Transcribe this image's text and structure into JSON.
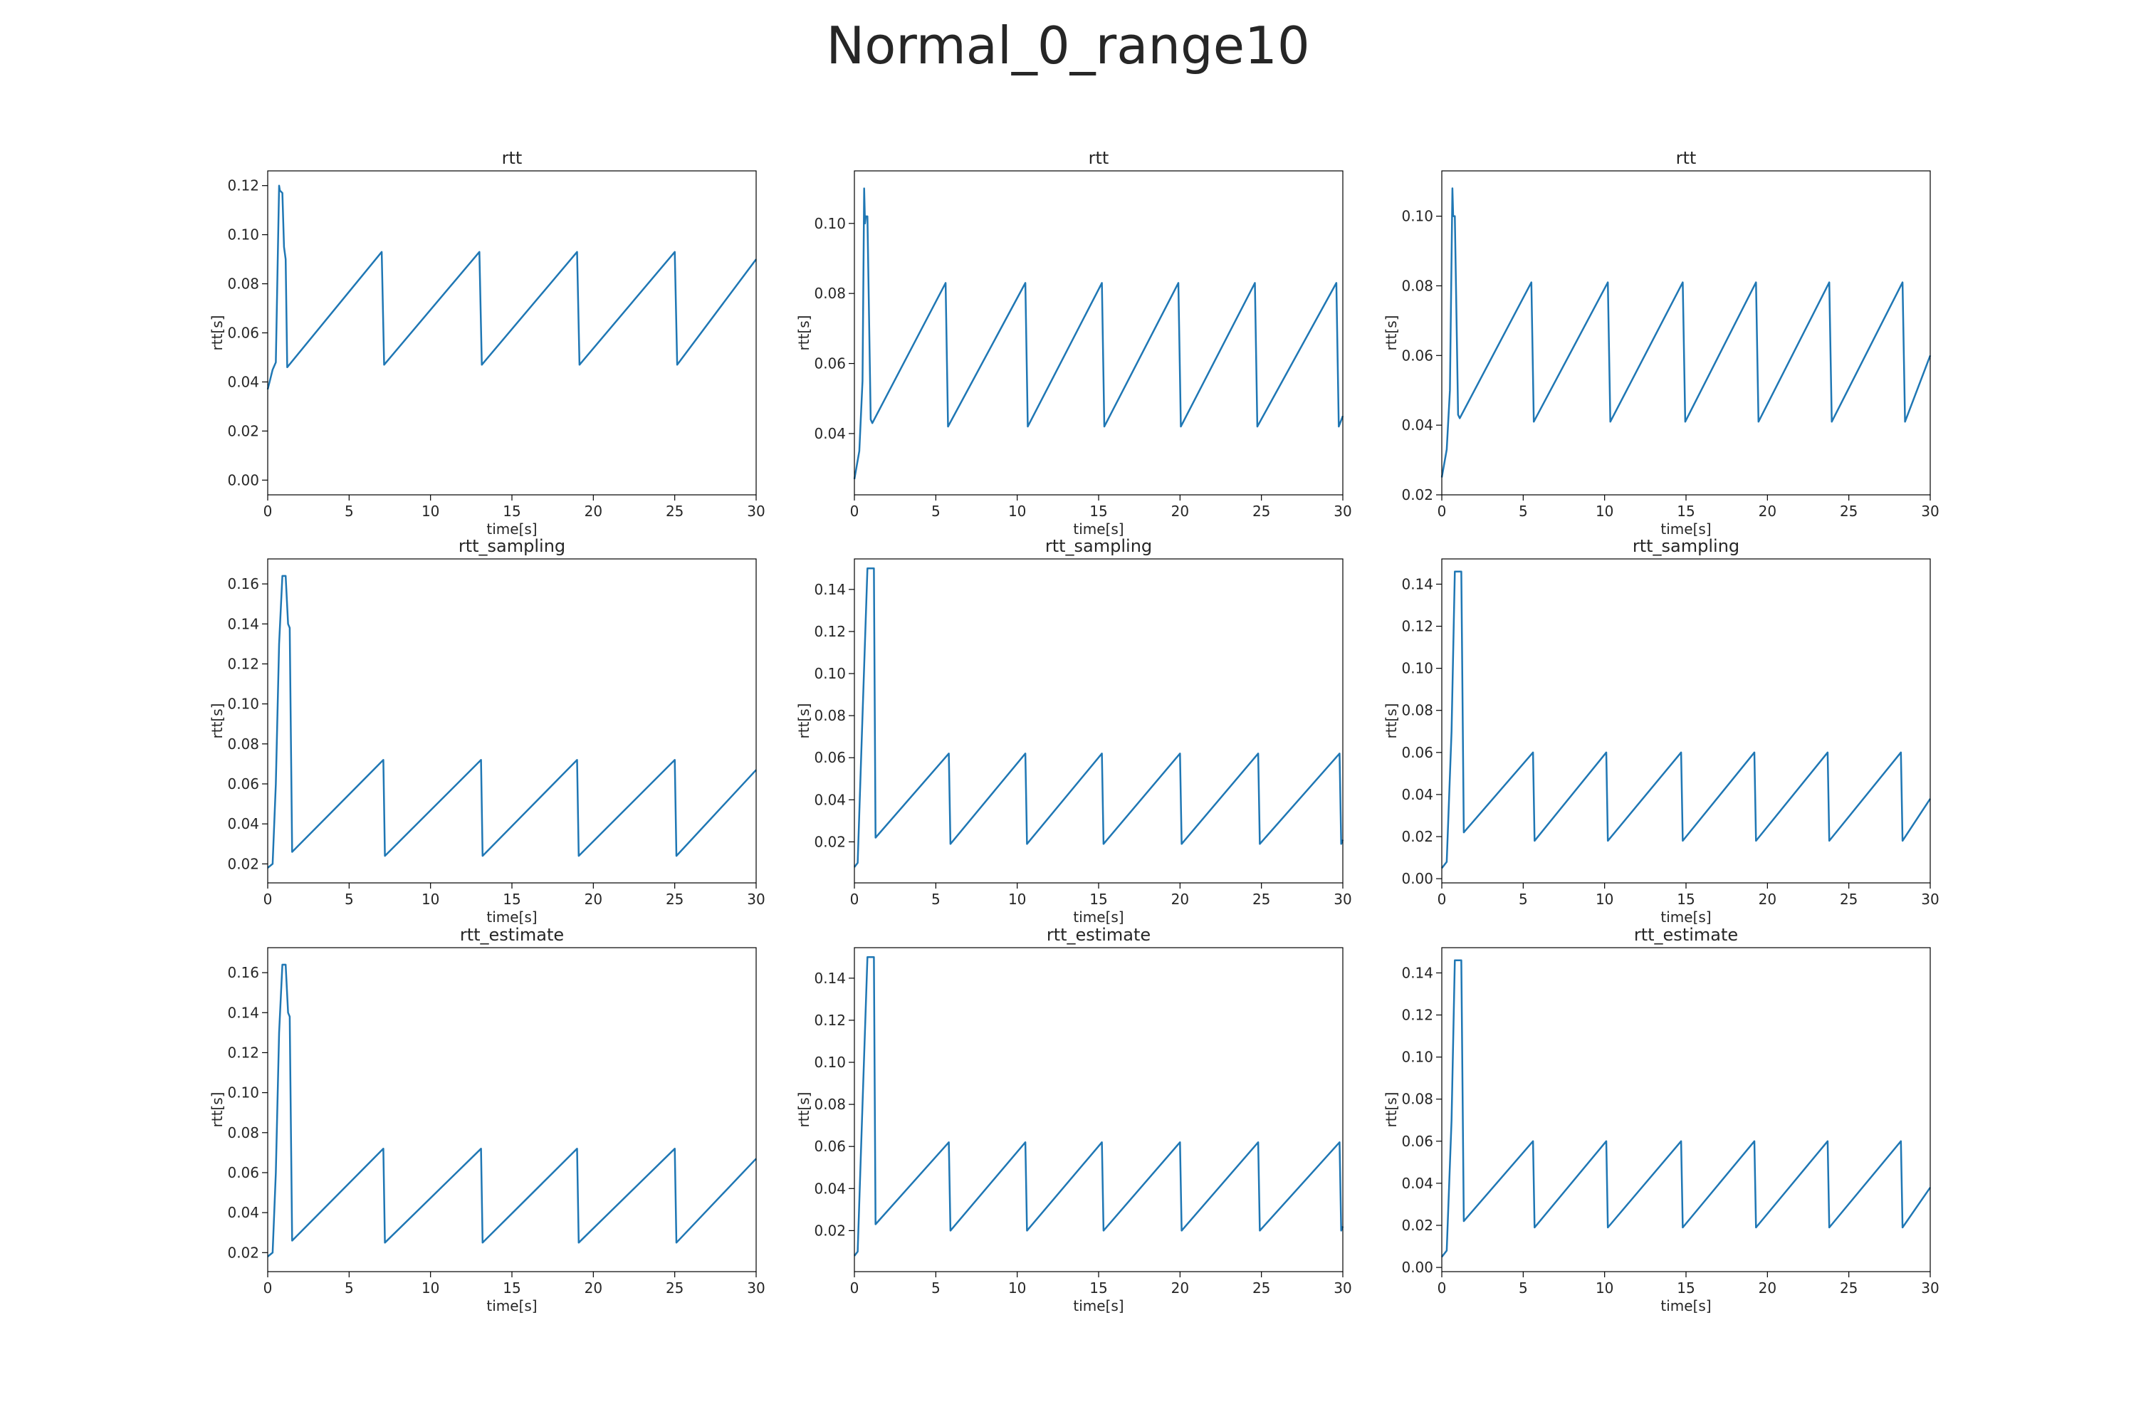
{
  "title": "Normal_0_range10",
  "line_color": "#1f77b4",
  "chart_data": [
    {
      "type": "line",
      "title": "rtt",
      "xlabel": "time[s]",
      "ylabel": "rtt[s]",
      "xlim": [
        0,
        30
      ],
      "ylim": [
        -0.006,
        0.126
      ],
      "xticks": [
        0,
        5,
        10,
        15,
        20,
        25,
        30
      ],
      "yticks": [
        0.0,
        0.02,
        0.04,
        0.06,
        0.08,
        0.1,
        0.12
      ],
      "yticklabels": [
        "0.00",
        "0.02",
        "0.04",
        "0.06",
        "0.08",
        "0.10",
        "0.12"
      ],
      "x": [
        0,
        0.3,
        0.5,
        0.7,
        0.75,
        0.9,
        1.0,
        1.1,
        1.2,
        7.0,
        7.15,
        13.0,
        13.15,
        19.0,
        19.15,
        25.0,
        25.15,
        30.0
      ],
      "y": [
        0.037,
        0.045,
        0.048,
        0.12,
        0.118,
        0.117,
        0.095,
        0.09,
        0.046,
        0.093,
        0.047,
        0.093,
        0.047,
        0.093,
        0.047,
        0.093,
        0.047,
        0.09
      ],
      "grid": false
    },
    {
      "type": "line",
      "title": "rtt",
      "xlabel": "time[s]",
      "ylabel": "rtt[s]",
      "xlim": [
        0,
        30
      ],
      "ylim": [
        0.0225,
        0.115
      ],
      "xticks": [
        0,
        5,
        10,
        15,
        20,
        25,
        30
      ],
      "yticks": [
        0.04,
        0.06,
        0.08,
        0.1
      ],
      "yticklabels": [
        "0.04",
        "0.06",
        "0.08",
        "0.10"
      ],
      "x": [
        0,
        0.3,
        0.5,
        0.6,
        0.65,
        0.7,
        0.8,
        1.0,
        1.1,
        5.6,
        5.75,
        10.5,
        10.65,
        15.2,
        15.35,
        19.9,
        20.05,
        24.6,
        24.75,
        29.6,
        29.75,
        30.0
      ],
      "y": [
        0.027,
        0.035,
        0.055,
        0.11,
        0.1,
        0.102,
        0.102,
        0.044,
        0.043,
        0.083,
        0.042,
        0.083,
        0.042,
        0.083,
        0.042,
        0.083,
        0.042,
        0.083,
        0.042,
        0.083,
        0.042,
        0.045
      ],
      "grid": false
    },
    {
      "type": "line",
      "title": "rtt",
      "xlabel": "time[s]",
      "ylabel": "rtt[s]",
      "xlim": [
        0,
        30
      ],
      "ylim": [
        0.02,
        0.113
      ],
      "xticks": [
        0,
        5,
        10,
        15,
        20,
        25,
        30
      ],
      "yticks": [
        0.02,
        0.04,
        0.06,
        0.08,
        0.1
      ],
      "yticklabels": [
        "0.02",
        "0.04",
        "0.06",
        "0.08",
        "0.10"
      ],
      "x": [
        0,
        0.3,
        0.5,
        0.65,
        0.7,
        0.8,
        1.0,
        1.1,
        5.5,
        5.65,
        10.2,
        10.35,
        14.8,
        14.95,
        19.3,
        19.45,
        23.8,
        23.95,
        28.3,
        28.45,
        30.0
      ],
      "y": [
        0.025,
        0.033,
        0.05,
        0.108,
        0.1,
        0.1,
        0.043,
        0.042,
        0.081,
        0.041,
        0.081,
        0.041,
        0.081,
        0.041,
        0.081,
        0.041,
        0.081,
        0.041,
        0.081,
        0.041,
        0.06
      ],
      "grid": false
    },
    {
      "type": "line",
      "title": "rtt_sampling",
      "xlabel": "time[s]",
      "ylabel": "rtt[s]",
      "xlim": [
        0,
        30
      ],
      "ylim": [
        0.0105,
        0.1725
      ],
      "xticks": [
        0,
        5,
        10,
        15,
        20,
        25,
        30
      ],
      "yticks": [
        0.02,
        0.04,
        0.06,
        0.08,
        0.1,
        0.12,
        0.14,
        0.16
      ],
      "yticklabels": [
        "0.02",
        "0.04",
        "0.06",
        "0.08",
        "0.10",
        "0.12",
        "0.14",
        "0.16"
      ],
      "x": [
        0,
        0.3,
        0.5,
        0.7,
        0.9,
        1.1,
        1.25,
        1.35,
        1.5,
        7.1,
        7.2,
        13.1,
        13.2,
        19.0,
        19.1,
        25.0,
        25.1,
        30.0
      ],
      "y": [
        0.018,
        0.02,
        0.06,
        0.13,
        0.164,
        0.164,
        0.14,
        0.138,
        0.026,
        0.072,
        0.024,
        0.072,
        0.024,
        0.072,
        0.024,
        0.072,
        0.024,
        0.067
      ],
      "grid": false
    },
    {
      "type": "line",
      "title": "rtt_sampling",
      "xlabel": "time[s]",
      "ylabel": "rtt[s]",
      "xlim": [
        0,
        30
      ],
      "ylim": [
        0.0005,
        0.1545
      ],
      "xticks": [
        0,
        5,
        10,
        15,
        20,
        25,
        30
      ],
      "yticks": [
        0.02,
        0.04,
        0.06,
        0.08,
        0.1,
        0.12,
        0.14
      ],
      "yticklabels": [
        "0.02",
        "0.04",
        "0.06",
        "0.08",
        "0.10",
        "0.12",
        "0.14"
      ],
      "x": [
        0,
        0.2,
        0.5,
        0.8,
        1.2,
        1.3,
        5.8,
        5.9,
        10.5,
        10.6,
        15.2,
        15.3,
        20.0,
        20.1,
        24.8,
        24.9,
        29.8,
        29.9,
        30.0
      ],
      "y": [
        0.008,
        0.01,
        0.08,
        0.15,
        0.15,
        0.022,
        0.062,
        0.019,
        0.062,
        0.019,
        0.062,
        0.019,
        0.062,
        0.019,
        0.062,
        0.019,
        0.062,
        0.019,
        0.021
      ],
      "grid": false
    },
    {
      "type": "line",
      "title": "rtt_sampling",
      "xlabel": "time[s]",
      "ylabel": "rtt[s]",
      "xlim": [
        0,
        30
      ],
      "ylim": [
        -0.002,
        0.152
      ],
      "xticks": [
        0,
        5,
        10,
        15,
        20,
        25,
        30
      ],
      "yticks": [
        0.0,
        0.02,
        0.04,
        0.06,
        0.08,
        0.1,
        0.12,
        0.14
      ],
      "yticklabels": [
        "0.00",
        "0.02",
        "0.04",
        "0.06",
        "0.08",
        "0.10",
        "0.12",
        "0.14"
      ],
      "x": [
        0,
        0.3,
        0.6,
        0.8,
        1.2,
        1.35,
        5.6,
        5.7,
        10.1,
        10.2,
        14.7,
        14.8,
        19.2,
        19.3,
        23.7,
        23.8,
        28.2,
        28.3,
        30.0
      ],
      "y": [
        0.005,
        0.008,
        0.07,
        0.146,
        0.146,
        0.022,
        0.06,
        0.018,
        0.06,
        0.018,
        0.06,
        0.018,
        0.06,
        0.018,
        0.06,
        0.018,
        0.06,
        0.018,
        0.038
      ],
      "grid": false
    },
    {
      "type": "line",
      "title": "rtt_estimate",
      "xlabel": "time[s]",
      "ylabel": "rtt[s]",
      "xlim": [
        0,
        30
      ],
      "ylim": [
        0.0105,
        0.1725
      ],
      "xticks": [
        0,
        5,
        10,
        15,
        20,
        25,
        30
      ],
      "yticks": [
        0.02,
        0.04,
        0.06,
        0.08,
        0.1,
        0.12,
        0.14,
        0.16
      ],
      "yticklabels": [
        "0.02",
        "0.04",
        "0.06",
        "0.08",
        "0.10",
        "0.12",
        "0.14",
        "0.16"
      ],
      "x": [
        0,
        0.3,
        0.5,
        0.7,
        0.9,
        1.1,
        1.25,
        1.35,
        1.5,
        7.1,
        7.2,
        13.1,
        13.2,
        19.0,
        19.1,
        25.0,
        25.1,
        30.0
      ],
      "y": [
        0.018,
        0.02,
        0.06,
        0.13,
        0.164,
        0.164,
        0.14,
        0.138,
        0.026,
        0.072,
        0.025,
        0.072,
        0.025,
        0.072,
        0.025,
        0.072,
        0.025,
        0.067
      ],
      "grid": false
    },
    {
      "type": "line",
      "title": "rtt_estimate",
      "xlabel": "time[s]",
      "ylabel": "rtt[s]",
      "xlim": [
        0,
        30
      ],
      "ylim": [
        0.0005,
        0.1545
      ],
      "xticks": [
        0,
        5,
        10,
        15,
        20,
        25,
        30
      ],
      "yticks": [
        0.02,
        0.04,
        0.06,
        0.08,
        0.1,
        0.12,
        0.14
      ],
      "yticklabels": [
        "0.02",
        "0.04",
        "0.06",
        "0.08",
        "0.10",
        "0.12",
        "0.14"
      ],
      "x": [
        0,
        0.2,
        0.5,
        0.8,
        1.2,
        1.3,
        5.8,
        5.9,
        10.5,
        10.6,
        15.2,
        15.3,
        20.0,
        20.1,
        24.8,
        24.9,
        29.8,
        29.9,
        30.0
      ],
      "y": [
        0.008,
        0.01,
        0.08,
        0.15,
        0.15,
        0.023,
        0.062,
        0.02,
        0.062,
        0.02,
        0.062,
        0.02,
        0.062,
        0.02,
        0.062,
        0.02,
        0.062,
        0.02,
        0.022
      ],
      "grid": false
    },
    {
      "type": "line",
      "title": "rtt_estimate",
      "xlabel": "time[s]",
      "ylabel": "rtt[s]",
      "xlim": [
        0,
        30
      ],
      "ylim": [
        -0.002,
        0.152
      ],
      "xticks": [
        0,
        5,
        10,
        15,
        20,
        25,
        30
      ],
      "yticks": [
        0.0,
        0.02,
        0.04,
        0.06,
        0.08,
        0.1,
        0.12,
        0.14
      ],
      "yticklabels": [
        "0.00",
        "0.02",
        "0.04",
        "0.06",
        "0.08",
        "0.10",
        "0.12",
        "0.14"
      ],
      "x": [
        0,
        0.3,
        0.6,
        0.8,
        1.2,
        1.35,
        5.6,
        5.7,
        10.1,
        10.2,
        14.7,
        14.8,
        19.2,
        19.3,
        23.7,
        23.8,
        28.2,
        28.3,
        30.0
      ],
      "y": [
        0.005,
        0.008,
        0.07,
        0.146,
        0.146,
        0.022,
        0.06,
        0.019,
        0.06,
        0.019,
        0.06,
        0.019,
        0.06,
        0.019,
        0.06,
        0.019,
        0.06,
        0.019,
        0.038
      ],
      "grid": false
    }
  ]
}
